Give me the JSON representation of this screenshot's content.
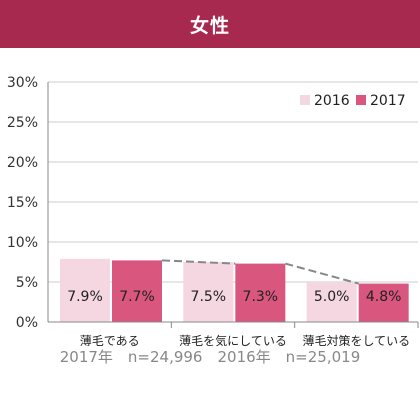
{
  "header": {
    "title": "女性"
  },
  "chart_data": {
    "type": "bar",
    "categories": [
      "薄毛である",
      "薄毛を気にしている",
      "薄毛対策をしている"
    ],
    "series": [
      {
        "name": "2016",
        "values": [
          7.9,
          7.5,
          5.0
        ],
        "labels": [
          "7.9%",
          "7.5%",
          "5.0%"
        ],
        "color": "#f5d7e1"
      },
      {
        "name": "2017",
        "values": [
          7.7,
          7.3,
          4.8
        ],
        "labels": [
          "7.7%",
          "7.3%",
          "4.8%"
        ],
        "color": "#d9567f"
      }
    ],
    "yticks": [
      "0%",
      "5%",
      "10%",
      "15%",
      "20%",
      "25%",
      "30%"
    ],
    "ylim": [
      0,
      30
    ],
    "grid": true,
    "legend": "top-right",
    "trend_line": {
      "series": "2017",
      "style": "dashed",
      "color": "#888888"
    }
  },
  "footer": {
    "n2017": "2017年　n=24,996",
    "n2016": "2016年　n=25,019"
  }
}
